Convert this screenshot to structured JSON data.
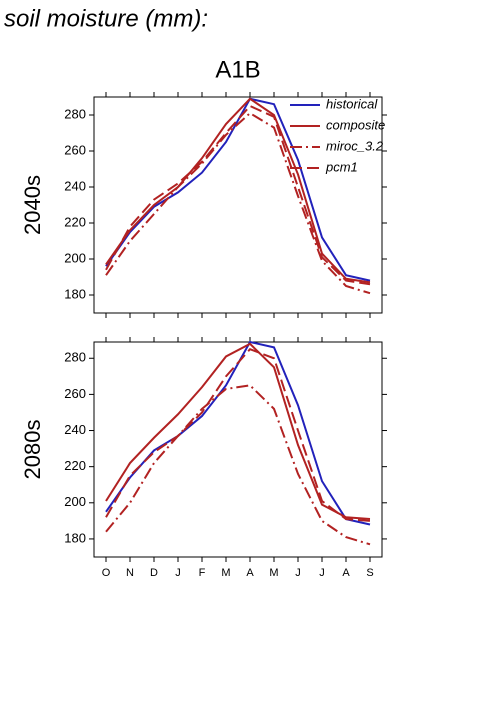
{
  "title": "soil moisture (mm):",
  "chart_data": [
    {
      "type": "line",
      "title": "A1B",
      "ylabel": "2040s",
      "ylim": [
        170,
        290
      ],
      "yticks": [
        180,
        200,
        220,
        240,
        260,
        280
      ],
      "grid": false,
      "legend": "upper right",
      "series": [
        {
          "name": "historical",
          "color": "#2222bb",
          "style": "solid",
          "values": [
            196,
            215,
            229,
            237,
            248,
            265,
            289,
            286,
            255,
            212,
            191,
            188
          ]
        },
        {
          "name": "composite",
          "color": "#b22222",
          "style": "solid",
          "values": [
            197,
            216,
            230,
            240,
            256,
            275,
            289,
            280,
            247,
            203,
            189,
            187
          ]
        },
        {
          "name": "miroc_3.2",
          "color": "#b22222",
          "style": "dashdot",
          "values": [
            191,
            210,
            225,
            240,
            253,
            269,
            281,
            273,
            235,
            199,
            185,
            181
          ]
        },
        {
          "name": "pcm1",
          "color": "#b22222",
          "style": "dashed",
          "values": [
            194,
            218,
            233,
            242,
            254,
            270,
            285,
            279,
            240,
            201,
            188,
            186
          ]
        }
      ]
    },
    {
      "type": "line",
      "ylabel": "2080s",
      "categories": [
        "O",
        "N",
        "D",
        "J",
        "F",
        "M",
        "A",
        "M",
        "J",
        "J",
        "A",
        "S"
      ],
      "ylim": [
        170,
        289
      ],
      "yticks": [
        180,
        200,
        220,
        240,
        260,
        280
      ],
      "grid": false,
      "series": [
        {
          "color": "#2222bb",
          "style": "solid",
          "values": [
            195,
            214,
            229,
            237,
            248,
            265,
            289,
            286,
            254,
            212,
            191,
            188
          ]
        },
        {
          "color": "#b22222",
          "style": "solid",
          "values": [
            201,
            222,
            236,
            249,
            264,
            281,
            288,
            275,
            232,
            199,
            192,
            191
          ]
        },
        {
          "color": "#b22222",
          "style": "dashdot",
          "values": [
            184,
            200,
            222,
            237,
            252,
            263,
            265,
            252,
            216,
            190,
            181,
            177
          ]
        },
        {
          "color": "#b22222",
          "style": "dashed",
          "values": [
            192,
            215,
            228,
            237,
            250,
            270,
            285,
            280,
            240,
            201,
            191,
            190
          ]
        }
      ]
    }
  ]
}
